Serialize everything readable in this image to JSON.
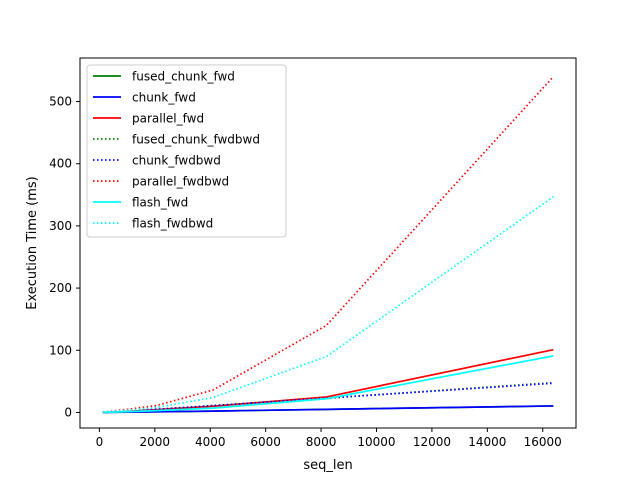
{
  "chart_data": {
    "type": "line",
    "title": "",
    "xlabel": "seq_len",
    "ylabel": "Execution Time (ms)",
    "xlim": [
      -700,
      17200
    ],
    "ylim": [
      -25,
      570
    ],
    "xticks": [
      0,
      2000,
      4000,
      6000,
      8000,
      10000,
      12000,
      14000,
      16000
    ],
    "yticks": [
      0,
      100,
      200,
      300,
      400,
      500
    ],
    "grid": false,
    "legend_position": "top-left",
    "x": [
      128,
      256,
      512,
      1024,
      2048,
      4096,
      8192,
      16384
    ],
    "series": [
      {
        "name": "fused_chunk_fwd",
        "color": "#008000",
        "style": "solid",
        "values": [
          0.1,
          0.15,
          0.25,
          0.5,
          1.0,
          2.2,
          5.0,
          10.5
        ]
      },
      {
        "name": "chunk_fwd",
        "color": "#0000ff",
        "style": "solid",
        "values": [
          0.1,
          0.15,
          0.25,
          0.5,
          1.0,
          2.2,
          5.0,
          10.5
        ]
      },
      {
        "name": "parallel_fwd",
        "color": "#ff0000",
        "style": "solid",
        "values": [
          0.2,
          0.3,
          0.6,
          1.5,
          4.5,
          10.0,
          25.0,
          101.0
        ]
      },
      {
        "name": "fused_chunk_fwdbwd",
        "color": "#008000",
        "style": "dotted",
        "values": [
          0.5,
          0.7,
          1.2,
          2.5,
          5.0,
          11.0,
          23.0,
          48.0
        ]
      },
      {
        "name": "chunk_fwdbwd",
        "color": "#0000ff",
        "style": "dotted",
        "values": [
          0.5,
          0.7,
          1.2,
          2.5,
          5.0,
          11.0,
          23.0,
          47.0
        ]
      },
      {
        "name": "parallel_fwdbwd",
        "color": "#ff0000",
        "style": "dotted",
        "values": [
          0.8,
          1.2,
          2.5,
          5.0,
          11.0,
          36.0,
          140.0,
          540.0
        ]
      },
      {
        "name": "flash_fwd",
        "color": "#00ffff",
        "style": "solid",
        "values": [
          0.2,
          0.3,
          0.5,
          1.2,
          3.0,
          7.0,
          22.0,
          91.0
        ]
      },
      {
        "name": "flash_fwdbwd",
        "color": "#00ffff",
        "style": "dotted",
        "values": [
          0.6,
          0.9,
          1.8,
          3.5,
          8.0,
          24.0,
          90.0,
          347.0
        ]
      }
    ]
  }
}
